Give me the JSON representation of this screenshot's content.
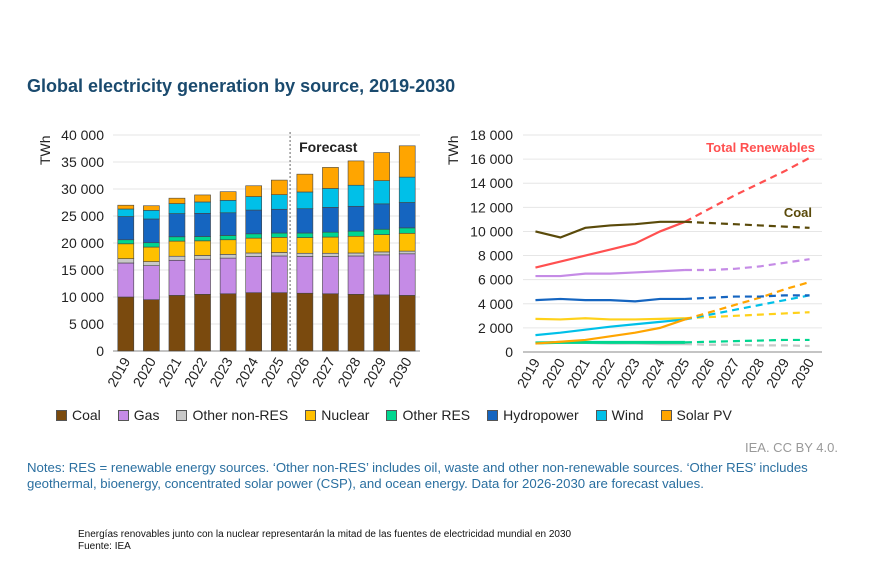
{
  "title": "Global electricity generation by source, 2019-2030",
  "chart_data": [
    {
      "type": "bar",
      "stacked": true,
      "ylabel": "TWh",
      "ylim": [
        0,
        40000
      ],
      "yticks": [
        "0",
        "5 000",
        "10 000",
        "15 000",
        "20 000",
        "25 000",
        "30 000",
        "35 000",
        "40 000"
      ],
      "categories": [
        "2019",
        "2020",
        "2021",
        "2022",
        "2023",
        "2024",
        "2025",
        "2026",
        "2027",
        "2028",
        "2029",
        "2030"
      ],
      "annotation": "Forecast",
      "series": [
        {
          "name": "Coal",
          "color": "#7a4a0e",
          "values": [
            10000,
            9500,
            10300,
            10500,
            10600,
            10800,
            10800,
            10700,
            10600,
            10500,
            10400,
            10300
          ]
        },
        {
          "name": "Gas",
          "color": "#c58be6",
          "values": [
            6300,
            6300,
            6500,
            6500,
            6600,
            6700,
            6800,
            6800,
            6900,
            7100,
            7400,
            7700
          ]
        },
        {
          "name": "Other non-RES",
          "color": "#c8c8c8",
          "values": [
            800,
            750,
            750,
            700,
            700,
            650,
            650,
            600,
            600,
            550,
            550,
            500
          ]
        },
        {
          "name": "Nuclear",
          "color": "#ffc000",
          "values": [
            2750,
            2700,
            2800,
            2700,
            2700,
            2750,
            2800,
            2900,
            3000,
            3100,
            3200,
            3300
          ]
        },
        {
          "name": "Other RES",
          "color": "#00d68f",
          "values": [
            750,
            800,
            800,
            800,
            800,
            800,
            800,
            850,
            900,
            950,
            1000,
            1000
          ]
        },
        {
          "name": "Hydropower",
          "color": "#1565c0",
          "values": [
            4300,
            4400,
            4300,
            4300,
            4200,
            4400,
            4400,
            4500,
            4600,
            4600,
            4700,
            4700
          ]
        },
        {
          "name": "Wind",
          "color": "#00c0e8",
          "values": [
            1400,
            1600,
            1850,
            2100,
            2300,
            2500,
            2700,
            3100,
            3500,
            3900,
            4300,
            4700
          ]
        },
        {
          "name": "Solar PV",
          "color": "#ffa500",
          "values": [
            700,
            850,
            1000,
            1300,
            1600,
            2000,
            2700,
            3300,
            3900,
            4500,
            5200,
            5800
          ]
        }
      ]
    },
    {
      "type": "line",
      "ylabel": "TWh",
      "ylim": [
        0,
        18000
      ],
      "yticks": [
        "0",
        "2 000",
        "4 000",
        "6 000",
        "8 000",
        "10 000",
        "12 000",
        "14 000",
        "16 000",
        "18 000"
      ],
      "x": [
        "2019",
        "2020",
        "2021",
        "2022",
        "2023",
        "2024",
        "2025",
        "2026",
        "2027",
        "2028",
        "2029",
        "2030"
      ],
      "forecast_from": "2025",
      "series": [
        {
          "name": "Other non-RES",
          "color": "#c8c8c8",
          "values": [
            800,
            750,
            750,
            700,
            700,
            650,
            650,
            600,
            600,
            550,
            550,
            500
          ]
        },
        {
          "name": "Other RES",
          "color": "#00d68f",
          "values": [
            750,
            800,
            800,
            800,
            800,
            800,
            800,
            850,
            900,
            950,
            1000,
            1000
          ]
        },
        {
          "name": "Nuclear",
          "color": "#ffd11a",
          "values": [
            2750,
            2700,
            2800,
            2700,
            2700,
            2750,
            2800,
            2900,
            3000,
            3100,
            3200,
            3300
          ]
        },
        {
          "name": "Wind",
          "color": "#00c0e8",
          "values": [
            1400,
            1600,
            1850,
            2100,
            2300,
            2500,
            2700,
            3100,
            3500,
            3900,
            4300,
            4700
          ]
        },
        {
          "name": "Solar PV",
          "color": "#ffa500",
          "values": [
            700,
            850,
            1000,
            1300,
            1600,
            2000,
            2700,
            3300,
            3900,
            4500,
            5200,
            5800
          ]
        },
        {
          "name": "Hydropower",
          "color": "#1565c0",
          "values": [
            4300,
            4400,
            4300,
            4300,
            4200,
            4400,
            4400,
            4500,
            4600,
            4600,
            4700,
            4700
          ]
        },
        {
          "name": "Gas",
          "color": "#c58be6",
          "values": [
            6300,
            6300,
            6500,
            6500,
            6600,
            6700,
            6800,
            6800,
            6900,
            7100,
            7400,
            7700
          ]
        },
        {
          "name": "Total Renewables",
          "color": "#ff5050",
          "values": [
            7000,
            7500,
            8000,
            8500,
            9000,
            10000,
            10800,
            11900,
            13000,
            14000,
            15000,
            16100
          ]
        },
        {
          "name": "Coal",
          "color": "#5a4a0a",
          "values": [
            10000,
            9500,
            10300,
            10500,
            10600,
            10800,
            10800,
            10700,
            10600,
            10500,
            10400,
            10300
          ]
        }
      ],
      "labels": {
        "renewables": "Total Renewables",
        "coal": "Coal"
      }
    }
  ],
  "legend": [
    "Coal",
    "Gas",
    "Other non-RES",
    "Nuclear",
    "Other RES",
    "Hydropower",
    "Wind",
    "Solar PV"
  ],
  "credit": "IEA. CC BY 4.0.",
  "notes": "Notes: RES = renewable energy sources. ‘Other non-RES’ includes oil, waste and other non-renewable sources. ‘Other RES’ includes geothermal, bioenergy, concentrated solar power (CSP), and ocean energy. Data for 2026-2030 are forecast values.",
  "caption": {
    "line1": "Energías renovables junto con la nuclear representarán la mitad de las fuentes de electricidad mundial en 2030",
    "line2": "Fuente: IEA"
  }
}
